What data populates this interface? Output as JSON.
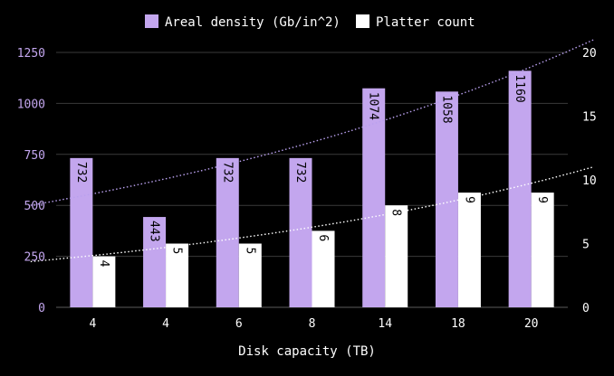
{
  "chart_data": {
    "type": "bar",
    "categories": [
      "4",
      "4",
      "6",
      "8",
      "14",
      "18",
      "20"
    ],
    "series": [
      {
        "name": "Areal density (Gb/in^2)",
        "axis": "left",
        "color": "#c3a6ee",
        "values": [
          732,
          443,
          732,
          732,
          1074,
          1058,
          1160
        ]
      },
      {
        "name": "Platter count",
        "axis": "right",
        "color": "#ffffff",
        "values": [
          4,
          5,
          5,
          6,
          8,
          9,
          9
        ]
      }
    ],
    "xlabel": "Disk capacity (TB)",
    "ylabel": "",
    "ylim": [
      0,
      1250
    ],
    "y2lim": [
      0,
      20
    ],
    "yticks": [
      "0",
      "250",
      "500",
      "750",
      "1000",
      "1250"
    ],
    "y2ticks": [
      "0",
      "5",
      "10",
      "15",
      "20"
    ],
    "legend_position": "top-center",
    "grid": true,
    "trendlines": "dotted exponential trendline for each series",
    "colors": {
      "background": "#000000",
      "gridline": "#3a3a3a",
      "left_axis_text": "#c3a6ee",
      "right_axis_text": "#ffffff",
      "bar_label_text": "#000000",
      "trend_density": "#b9a0ee",
      "trend_platter": "#ffffff"
    }
  }
}
